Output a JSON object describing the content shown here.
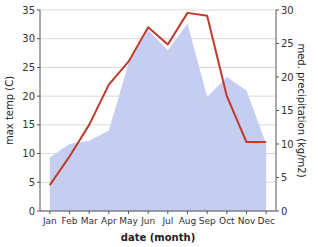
{
  "chart_data": {
    "type": "line",
    "xlabel": "date (month)",
    "ylabel": "max temp (C)",
    "y2label": "med. precipitation (kg/m2)",
    "categories": [
      "Jan",
      "Feb",
      "Mar",
      "Apr",
      "May",
      "Jun",
      "Jul",
      "Aug",
      "Sep",
      "Oct",
      "Nov",
      "Dec"
    ],
    "series": [
      {
        "type": "area",
        "axis": "y2",
        "color": "#c5cdf0",
        "values": [
          8.0,
          10.0,
          10.5,
          12.0,
          22.0,
          27.0,
          24.0,
          28.0,
          17.0,
          20.0,
          18.0,
          10.0
        ]
      },
      {
        "type": "line",
        "color": "#c0392b",
        "values": [
          4.5,
          9.5,
          15.0,
          22.0,
          26.0,
          32.0,
          29.0,
          34.5,
          34.0,
          20.0,
          12.0,
          12.0
        ]
      }
    ],
    "ylim": [
      0,
      35
    ],
    "yticks": [
      0,
      5,
      10,
      15,
      20,
      25,
      30,
      35
    ],
    "y2lim": [
      0,
      30
    ],
    "y2ticks": [
      0,
      5,
      10,
      15,
      20,
      25,
      30
    ],
    "grid": true
  }
}
